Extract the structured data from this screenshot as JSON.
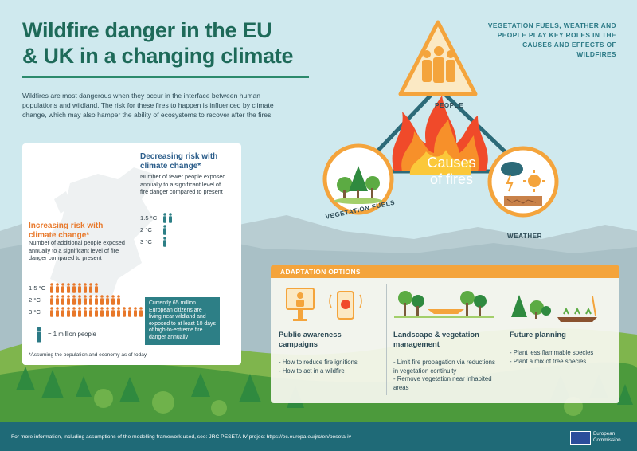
{
  "header": {
    "title_line1": "Wildfire danger in the EU",
    "title_line2": "& UK in a changing climate"
  },
  "intro": "Wildfires are most dangerous when they occur in the interface between human populations and wildland. The risk for these fires to happen is influenced by climate change, which may also hamper the ability of ecosystems to recover after the fires.",
  "tagline": "Vegetation fuels, weather and people play key roles in the causes and effects of wildfires",
  "triangle": {
    "people_label": "PEOPLE",
    "center_line1": "Causes",
    "center_line2": "of fires",
    "vegetation_label": "VEGETATION FUELS",
    "weather_label": "WEATHER"
  },
  "risk_panel": {
    "decreasing": {
      "heading": "Decreasing risk with climate change*",
      "text": "Number of fewer people exposed annually to a significant level of fire danger compared to present",
      "rows": [
        {
          "label": "1.5 °C",
          "people": 2
        },
        {
          "label": "2 °C",
          "people": 1
        },
        {
          "label": "3 °C",
          "people": 1
        }
      ]
    },
    "increasing": {
      "heading": "Increasing risk with climate change*",
      "text": "Number of additional people exposed annually to a significant level of fire danger compared to present",
      "rows": [
        {
          "label": "1.5 °C",
          "people": 9
        },
        {
          "label": "2 °C",
          "people": 13
        },
        {
          "label": "3 °C",
          "people": 17
        }
      ]
    },
    "info_box": "Currently 65 million European citizens are living near wildland and exposed to at least 10 days of high-to-extreme fire danger annually",
    "legend": "= 1 million people",
    "footnote": "*Assuming the population and economy as of today"
  },
  "adaptation": {
    "heading": "ADAPTATION OPTIONS",
    "columns": [
      {
        "title": "Public awareness campaigns",
        "items": [
          "- How to reduce fire ignitions",
          "- How to act in a wildfire"
        ]
      },
      {
        "title": "Landscape & vegetation management",
        "items": [
          "- Limit fire propagation via reductions in vegetation continuity",
          "- Remove vegetation near inhabited areas"
        ]
      },
      {
        "title": "Future planning",
        "items": [
          "- Plant less flammable species",
          "- Plant a mix of tree species"
        ]
      }
    ]
  },
  "footer": {
    "text": "For more information, including assumptions of the modelling framework used, see: JRC PESETA IV project https://ec.europa.eu/jrc/en/peseta-iv",
    "logo_text": "European Commission"
  },
  "colors": {
    "title": "#1e6a59",
    "orange": "#e8782a",
    "blue": "#2b5d8a",
    "teal": "#2d7f86",
    "footer": "#1f6a77",
    "adapt_header": "#f4a43c"
  }
}
